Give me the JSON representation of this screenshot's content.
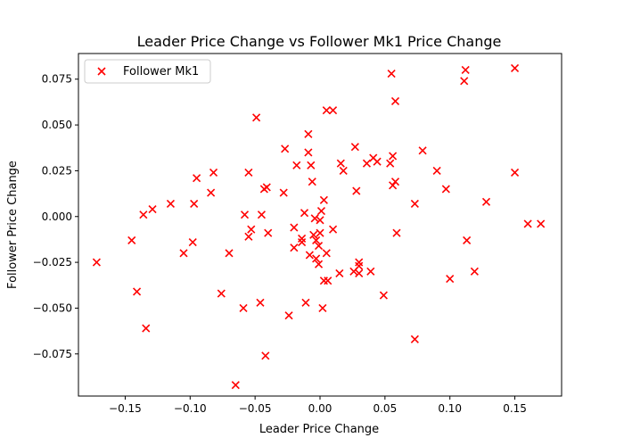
{
  "chart_data": {
    "type": "scatter",
    "title": "Leader Price Change vs Follower Mk1 Price Change",
    "xlabel": "Leader Price Change",
    "ylabel": "Follower Price Change",
    "xlim": [
      -0.186,
      0.186
    ],
    "ylim": [
      -0.098,
      0.089
    ],
    "xticks": [
      "−0.15",
      "−0.10",
      "−0.05",
      "0.00",
      "0.05",
      "0.10",
      "0.15"
    ],
    "xtick_values": [
      -0.15,
      -0.1,
      -0.05,
      0.0,
      0.05,
      0.1,
      0.15
    ],
    "yticks": [
      "−0.075",
      "−0.050",
      "−0.025",
      "0.000",
      "0.025",
      "0.050",
      "0.075"
    ],
    "ytick_values": [
      -0.075,
      -0.05,
      -0.025,
      0.0,
      0.025,
      0.05,
      0.075
    ],
    "grid": false,
    "legend_position": "upper-left",
    "series": [
      {
        "name": "Follower Mk1",
        "marker": "x",
        "color": "#ff0000",
        "points": [
          [
            0.055,
            0.078
          ],
          [
            0.112,
            0.08
          ],
          [
            0.15,
            0.081
          ],
          [
            0.111,
            0.074
          ],
          [
            0.058,
            0.063
          ],
          [
            0.005,
            0.058
          ],
          [
            0.01,
            0.058
          ],
          [
            -0.049,
            0.054
          ],
          [
            -0.009,
            0.045
          ],
          [
            -0.027,
            0.037
          ],
          [
            -0.009,
            0.035
          ],
          [
            0.027,
            0.038
          ],
          [
            0.041,
            0.032
          ],
          [
            0.056,
            0.033
          ],
          [
            0.054,
            0.029
          ],
          [
            0.079,
            0.036
          ],
          [
            0.036,
            0.029
          ],
          [
            0.044,
            0.03
          ],
          [
            -0.018,
            0.028
          ],
          [
            -0.007,
            0.028
          ],
          [
            0.016,
            0.029
          ],
          [
            0.018,
            0.025
          ],
          [
            0.09,
            0.025
          ],
          [
            0.15,
            0.024
          ],
          [
            -0.095,
            0.021
          ],
          [
            -0.082,
            0.024
          ],
          [
            -0.055,
            0.024
          ],
          [
            -0.006,
            0.019
          ],
          [
            -0.041,
            0.016
          ],
          [
            -0.043,
            0.015
          ],
          [
            -0.028,
            0.013
          ],
          [
            0.028,
            0.014
          ],
          [
            0.056,
            0.017
          ],
          [
            0.058,
            0.019
          ],
          [
            0.097,
            0.015
          ],
          [
            -0.084,
            0.013
          ],
          [
            -0.115,
            0.007
          ],
          [
            -0.097,
            0.007
          ],
          [
            0.073,
            0.007
          ],
          [
            0.128,
            0.008
          ],
          [
            0.003,
            0.009
          ],
          [
            -0.129,
            0.004
          ],
          [
            -0.136,
            0.001
          ],
          [
            -0.058,
            0.001
          ],
          [
            -0.045,
            0.001
          ],
          [
            -0.012,
            0.002
          ],
          [
            0.001,
            0.003
          ],
          [
            -0.004,
            -0.001
          ],
          [
            0.0,
            -0.002
          ],
          [
            -0.053,
            -0.007
          ],
          [
            -0.055,
            -0.011
          ],
          [
            -0.04,
            -0.009
          ],
          [
            -0.02,
            -0.006
          ],
          [
            0.01,
            -0.007
          ],
          [
            -0.005,
            -0.01
          ],
          [
            0.0,
            -0.009
          ],
          [
            -0.003,
            -0.013
          ],
          [
            -0.001,
            -0.016
          ],
          [
            -0.014,
            -0.014
          ],
          [
            -0.014,
            -0.012
          ],
          [
            -0.02,
            -0.017
          ],
          [
            0.059,
            -0.009
          ],
          [
            0.16,
            -0.004
          ],
          [
            0.17,
            -0.004
          ],
          [
            0.113,
            -0.013
          ],
          [
            -0.145,
            -0.013
          ],
          [
            -0.098,
            -0.014
          ],
          [
            -0.105,
            -0.02
          ],
          [
            -0.07,
            -0.02
          ],
          [
            -0.008,
            -0.021
          ],
          [
            0.005,
            -0.02
          ],
          [
            -0.003,
            -0.023
          ],
          [
            0.03,
            -0.025
          ],
          [
            0.03,
            -0.027
          ],
          [
            -0.001,
            -0.026
          ],
          [
            -0.172,
            -0.025
          ],
          [
            0.015,
            -0.031
          ],
          [
            0.026,
            -0.03
          ],
          [
            0.03,
            -0.031
          ],
          [
            0.039,
            -0.03
          ],
          [
            0.119,
            -0.03
          ],
          [
            0.003,
            -0.035
          ],
          [
            0.006,
            -0.035
          ],
          [
            0.1,
            -0.034
          ],
          [
            -0.141,
            -0.041
          ],
          [
            -0.076,
            -0.042
          ],
          [
            0.049,
            -0.043
          ],
          [
            -0.011,
            -0.047
          ],
          [
            -0.046,
            -0.047
          ],
          [
            -0.059,
            -0.05
          ],
          [
            0.002,
            -0.05
          ],
          [
            -0.024,
            -0.054
          ],
          [
            -0.134,
            -0.061
          ],
          [
            0.073,
            -0.067
          ],
          [
            -0.042,
            -0.076
          ],
          [
            -0.065,
            -0.092
          ]
        ]
      }
    ]
  }
}
